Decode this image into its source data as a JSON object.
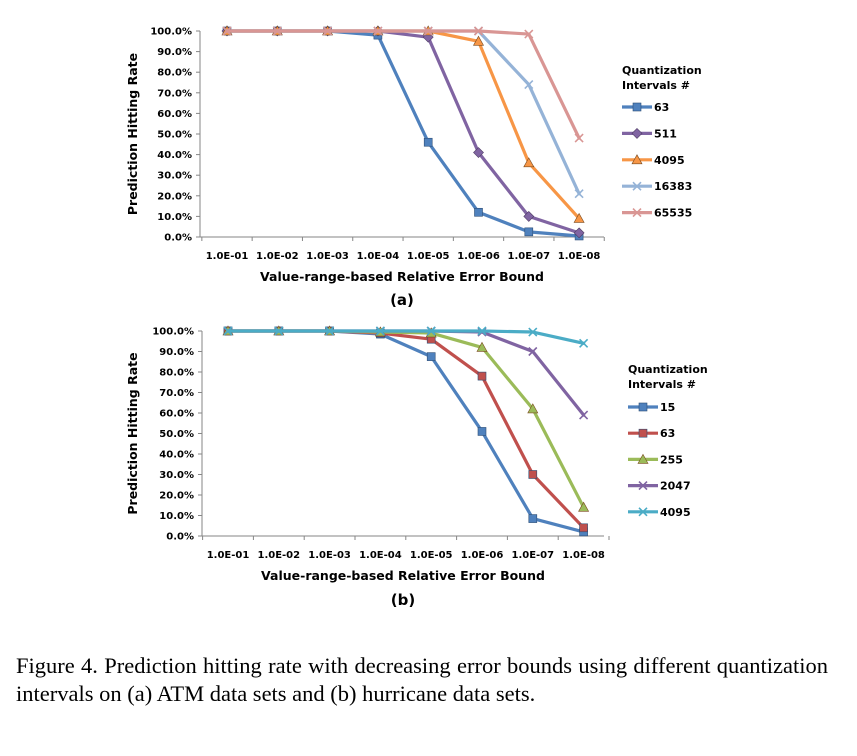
{
  "chart_data": [
    {
      "type": "line",
      "panel_label": "(a)",
      "xlabel": "Value-range-based Relative Error Bound",
      "ylabel": "Prediction Hitting Rate",
      "categories": [
        "1.0E-01",
        "1.0E-02",
        "1.0E-03",
        "1.0E-04",
        "1.0E-05",
        "1.0E-06",
        "1.0E-07",
        "1.0E-08"
      ],
      "yticks": [
        "0.0%",
        "10.0%",
        "20.0%",
        "30.0%",
        "40.0%",
        "50.0%",
        "60.0%",
        "70.0%",
        "80.0%",
        "90.0%",
        "100.0%"
      ],
      "ylim": [
        0,
        100
      ],
      "legend_title": [
        "Quantization",
        "Intervals #"
      ],
      "legend_position": "right",
      "grid": false,
      "series": [
        {
          "name": "63",
          "color": "#4F81BD",
          "marker": "square",
          "values": [
            100,
            100,
            100,
            98,
            46,
            12,
            2.5,
            0.5
          ]
        },
        {
          "name": "511",
          "color": "#8064A2",
          "marker": "diamond",
          "values": [
            100,
            100,
            100,
            100,
            97,
            41,
            10,
            2
          ]
        },
        {
          "name": "4095",
          "color": "#F79646",
          "marker": "triangle",
          "values": [
            100,
            100,
            100,
            100,
            100,
            95,
            36,
            9
          ]
        },
        {
          "name": "16383",
          "color": "#95B3D7",
          "marker": "x",
          "values": [
            100,
            100,
            100,
            100,
            100,
            100,
            74,
            21
          ]
        },
        {
          "name": "65535",
          "color": "#D99694",
          "marker": "x",
          "values": [
            100,
            100,
            100,
            100,
            100,
            100,
            98.5,
            48
          ]
        }
      ]
    },
    {
      "type": "line",
      "panel_label": "(b)",
      "xlabel": "Value-range-based Relative Error Bound",
      "ylabel": "Prediction Hitting Rate",
      "categories": [
        "1.0E-01",
        "1.0E-02",
        "1.0E-03",
        "1.0E-04",
        "1.0E-05",
        "1.0E-06",
        "1.0E-07",
        "1.0E-08"
      ],
      "yticks": [
        "0.0%",
        "10.0%",
        "20.0%",
        "30.0%",
        "40.0%",
        "50.0%",
        "60.0%",
        "70.0%",
        "80.0%",
        "90.0%",
        "100.0%"
      ],
      "ylim": [
        0,
        100
      ],
      "legend_title": [
        "Quantization",
        "Intervals #"
      ],
      "legend_position": "right",
      "grid": false,
      "series": [
        {
          "name": "15",
          "color": "#4F81BD",
          "marker": "square",
          "values": [
            100,
            100,
            100,
            98.5,
            87.5,
            51,
            8.5,
            2
          ]
        },
        {
          "name": "63",
          "color": "#C0504D",
          "marker": "square",
          "values": [
            100,
            100,
            100,
            99,
            96,
            78,
            30,
            4
          ]
        },
        {
          "name": "255",
          "color": "#9BBB59",
          "marker": "triangle",
          "values": [
            100,
            100,
            100,
            99.5,
            99,
            92,
            62,
            14
          ]
        },
        {
          "name": "2047",
          "color": "#8064A2",
          "marker": "x",
          "values": [
            100,
            100,
            100,
            100,
            100,
            99.5,
            90,
            59
          ]
        },
        {
          "name": "4095",
          "color": "#4BACC6",
          "marker": "x",
          "values": [
            100,
            100,
            100,
            100,
            100,
            100,
            99.5,
            94
          ]
        }
      ]
    }
  ],
  "caption": "Figure 4.    Prediction hitting rate with decreasing error bounds using different quantization intervals on (a) ATM data sets and (b) hurricane data sets."
}
